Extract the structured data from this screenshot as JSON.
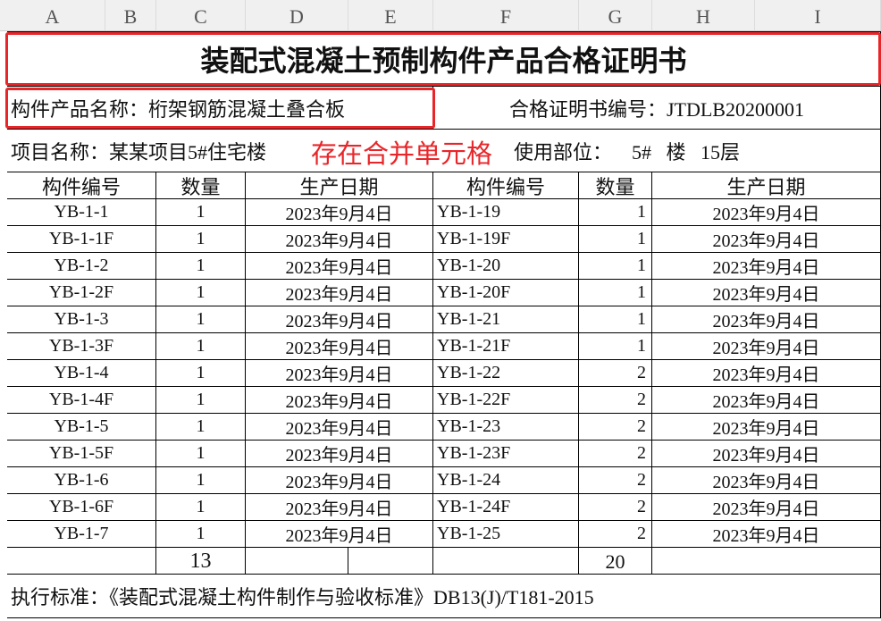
{
  "columns": [
    "A",
    "B",
    "C",
    "D",
    "E",
    "F",
    "G",
    "H",
    "I"
  ],
  "title": "装配式混凝土预制构件产品合格证明书",
  "product_name": "构件产品名称：桁架钢筋混凝土叠合板",
  "cert_no": "合格证明书编号：JTDLB20200001",
  "project_name": "项目名称：某某项目5#住宅楼",
  "annotation": "存在合并单元格",
  "location": "使用部位：    5#   楼   15层",
  "headers": [
    "构件编号",
    "数量",
    "生产日期",
    "构件编号",
    "数量",
    "生产日期"
  ],
  "rows": [
    [
      "YB-1-1",
      "1",
      "2023年9月4日",
      "YB-1-19",
      "1",
      "2023年9月4日"
    ],
    [
      "YB-1-1F",
      "1",
      "2023年9月4日",
      "YB-1-19F",
      "1",
      "2023年9月4日"
    ],
    [
      "YB-1-2",
      "1",
      "2023年9月4日",
      "YB-1-20",
      "1",
      "2023年9月4日"
    ],
    [
      "YB-1-2F",
      "1",
      "2023年9月4日",
      "YB-1-20F",
      "1",
      "2023年9月4日"
    ],
    [
      "YB-1-3",
      "1",
      "2023年9月4日",
      "YB-1-21",
      "1",
      "2023年9月4日"
    ],
    [
      "YB-1-3F",
      "1",
      "2023年9月4日",
      "YB-1-21F",
      "1",
      "2023年9月4日"
    ],
    [
      "YB-1-4",
      "1",
      "2023年9月4日",
      "YB-1-22",
      "2",
      "2023年9月4日"
    ],
    [
      "YB-1-4F",
      "1",
      "2023年9月4日",
      "YB-1-22F",
      "2",
      "2023年9月4日"
    ],
    [
      "YB-1-5",
      "1",
      "2023年9月4日",
      "YB-1-23",
      "2",
      "2023年9月4日"
    ],
    [
      "YB-1-5F",
      "1",
      "2023年9月4日",
      "YB-1-23F",
      "2",
      "2023年9月4日"
    ],
    [
      "YB-1-6",
      "1",
      "2023年9月4日",
      "YB-1-24",
      "2",
      "2023年9月4日"
    ],
    [
      "YB-1-6F",
      "1",
      "2023年9月4日",
      "YB-1-24F",
      "2",
      "2023年9月4日"
    ],
    [
      "YB-1-7",
      "1",
      "2023年9月4日",
      "YB-1-25",
      "2",
      "2023年9月4日"
    ]
  ],
  "totals": {
    "left": "13",
    "right": "20"
  },
  "standard": "执行标准：《装配式混凝土构件制作与验收标准》DB13(J)/T181-2015",
  "colors": {
    "highlight": "#e8262a"
  }
}
